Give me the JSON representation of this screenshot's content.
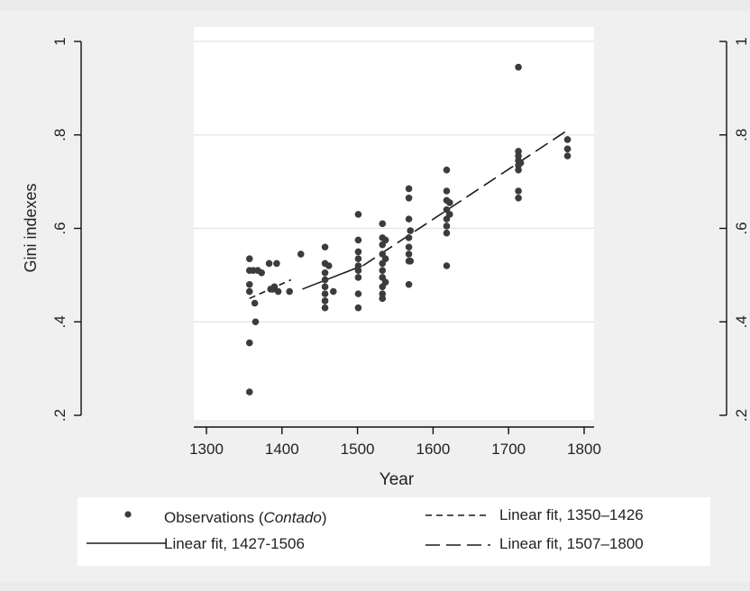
{
  "chart_data": {
    "type": "scatter",
    "xlabel": "Year",
    "ylabel": "Gini indexes",
    "xlim": [
      1290,
      1800
    ],
    "ylim": [
      0.2,
      1.0
    ],
    "x_ticks": [
      1300,
      1400,
      1500,
      1600,
      1700,
      1800
    ],
    "x_tick_labels": [
      "1300",
      "1400",
      "1500",
      "1600",
      "1700",
      "1800"
    ],
    "y_ticks": [
      0.2,
      0.4,
      0.6,
      0.8,
      1.0
    ],
    "y_tick_labels": [
      ".2",
      ".4",
      ".6",
      ".8",
      "1"
    ],
    "right_axis_tick_labels": [
      ".2",
      ".4",
      ".6",
      ".8",
      "1"
    ],
    "grid": "horizontal",
    "legend_position": "bottom",
    "colors": {
      "background": "#ebebeb",
      "plot_area": "#ffffff",
      "points": "#3c3c3c",
      "lines": "#1a1a1a",
      "grid": "#e2e2e2"
    },
    "series": [
      {
        "name": "Observations (Contado)",
        "kind": "scatter",
        "points": [
          [
            1357,
            0.535
          ],
          [
            1357,
            0.51
          ],
          [
            1357,
            0.48
          ],
          [
            1357,
            0.465
          ],
          [
            1357,
            0.355
          ],
          [
            1357,
            0.25
          ],
          [
            1362,
            0.51
          ],
          [
            1364,
            0.44
          ],
          [
            1365,
            0.4
          ],
          [
            1368,
            0.51
          ],
          [
            1373,
            0.505
          ],
          [
            1383,
            0.525
          ],
          [
            1385,
            0.47
          ],
          [
            1388,
            0.47
          ],
          [
            1390,
            0.475
          ],
          [
            1393,
            0.525
          ],
          [
            1395,
            0.465
          ],
          [
            1410,
            0.465
          ],
          [
            1425,
            0.545
          ],
          [
            1457,
            0.56
          ],
          [
            1457,
            0.525
          ],
          [
            1457,
            0.505
          ],
          [
            1457,
            0.49
          ],
          [
            1457,
            0.475
          ],
          [
            1457,
            0.46
          ],
          [
            1457,
            0.445
          ],
          [
            1457,
            0.43
          ],
          [
            1462,
            0.52
          ],
          [
            1468,
            0.465
          ],
          [
            1501,
            0.63
          ],
          [
            1501,
            0.575
          ],
          [
            1501,
            0.55
          ],
          [
            1501,
            0.535
          ],
          [
            1501,
            0.52
          ],
          [
            1501,
            0.51
          ],
          [
            1501,
            0.495
          ],
          [
            1501,
            0.46
          ],
          [
            1501,
            0.43
          ],
          [
            1533,
            0.61
          ],
          [
            1533,
            0.58
          ],
          [
            1533,
            0.565
          ],
          [
            1533,
            0.545
          ],
          [
            1533,
            0.525
          ],
          [
            1533,
            0.51
          ],
          [
            1533,
            0.495
          ],
          [
            1533,
            0.475
          ],
          [
            1533,
            0.46
          ],
          [
            1533,
            0.45
          ],
          [
            1537,
            0.575
          ],
          [
            1537,
            0.535
          ],
          [
            1537,
            0.485
          ],
          [
            1568,
            0.685
          ],
          [
            1568,
            0.665
          ],
          [
            1568,
            0.62
          ],
          [
            1568,
            0.58
          ],
          [
            1568,
            0.56
          ],
          [
            1568,
            0.545
          ],
          [
            1568,
            0.53
          ],
          [
            1568,
            0.48
          ],
          [
            1570,
            0.595
          ],
          [
            1570,
            0.53
          ],
          [
            1618,
            0.725
          ],
          [
            1618,
            0.68
          ],
          [
            1618,
            0.66
          ],
          [
            1618,
            0.64
          ],
          [
            1618,
            0.62
          ],
          [
            1618,
            0.605
          ],
          [
            1618,
            0.59
          ],
          [
            1618,
            0.52
          ],
          [
            1622,
            0.655
          ],
          [
            1622,
            0.63
          ],
          [
            1713,
            0.945
          ],
          [
            1713,
            0.765
          ],
          [
            1713,
            0.755
          ],
          [
            1713,
            0.745
          ],
          [
            1713,
            0.735
          ],
          [
            1713,
            0.725
          ],
          [
            1713,
            0.68
          ],
          [
            1713,
            0.665
          ],
          [
            1716,
            0.74
          ],
          [
            1778,
            0.79
          ],
          [
            1778,
            0.77
          ],
          [
            1778,
            0.755
          ]
        ]
      },
      {
        "name": "Linear fit, 1350–1426",
        "kind": "line",
        "dash": "short",
        "points": [
          [
            1357,
            0.45
          ],
          [
            1412,
            0.49
          ]
        ]
      },
      {
        "name": "Linear fit, 1427-1506",
        "kind": "line",
        "dash": "solid",
        "points": [
          [
            1427,
            0.47
          ],
          [
            1506,
            0.52
          ]
        ]
      },
      {
        "name": "Linear fit, 1507–1800",
        "kind": "line",
        "dash": "long",
        "points": [
          [
            1507,
            0.52
          ],
          [
            1778,
            0.81
          ]
        ]
      }
    ]
  },
  "legend": {
    "observations_prefix": "Observations (",
    "observations_italic": "Contado",
    "observations_suffix": ")",
    "fit1": "Linear fit, 1350–1426",
    "fit2": "Linear fit, 1427-1506",
    "fit3": "Linear fit, 1507–1800"
  }
}
